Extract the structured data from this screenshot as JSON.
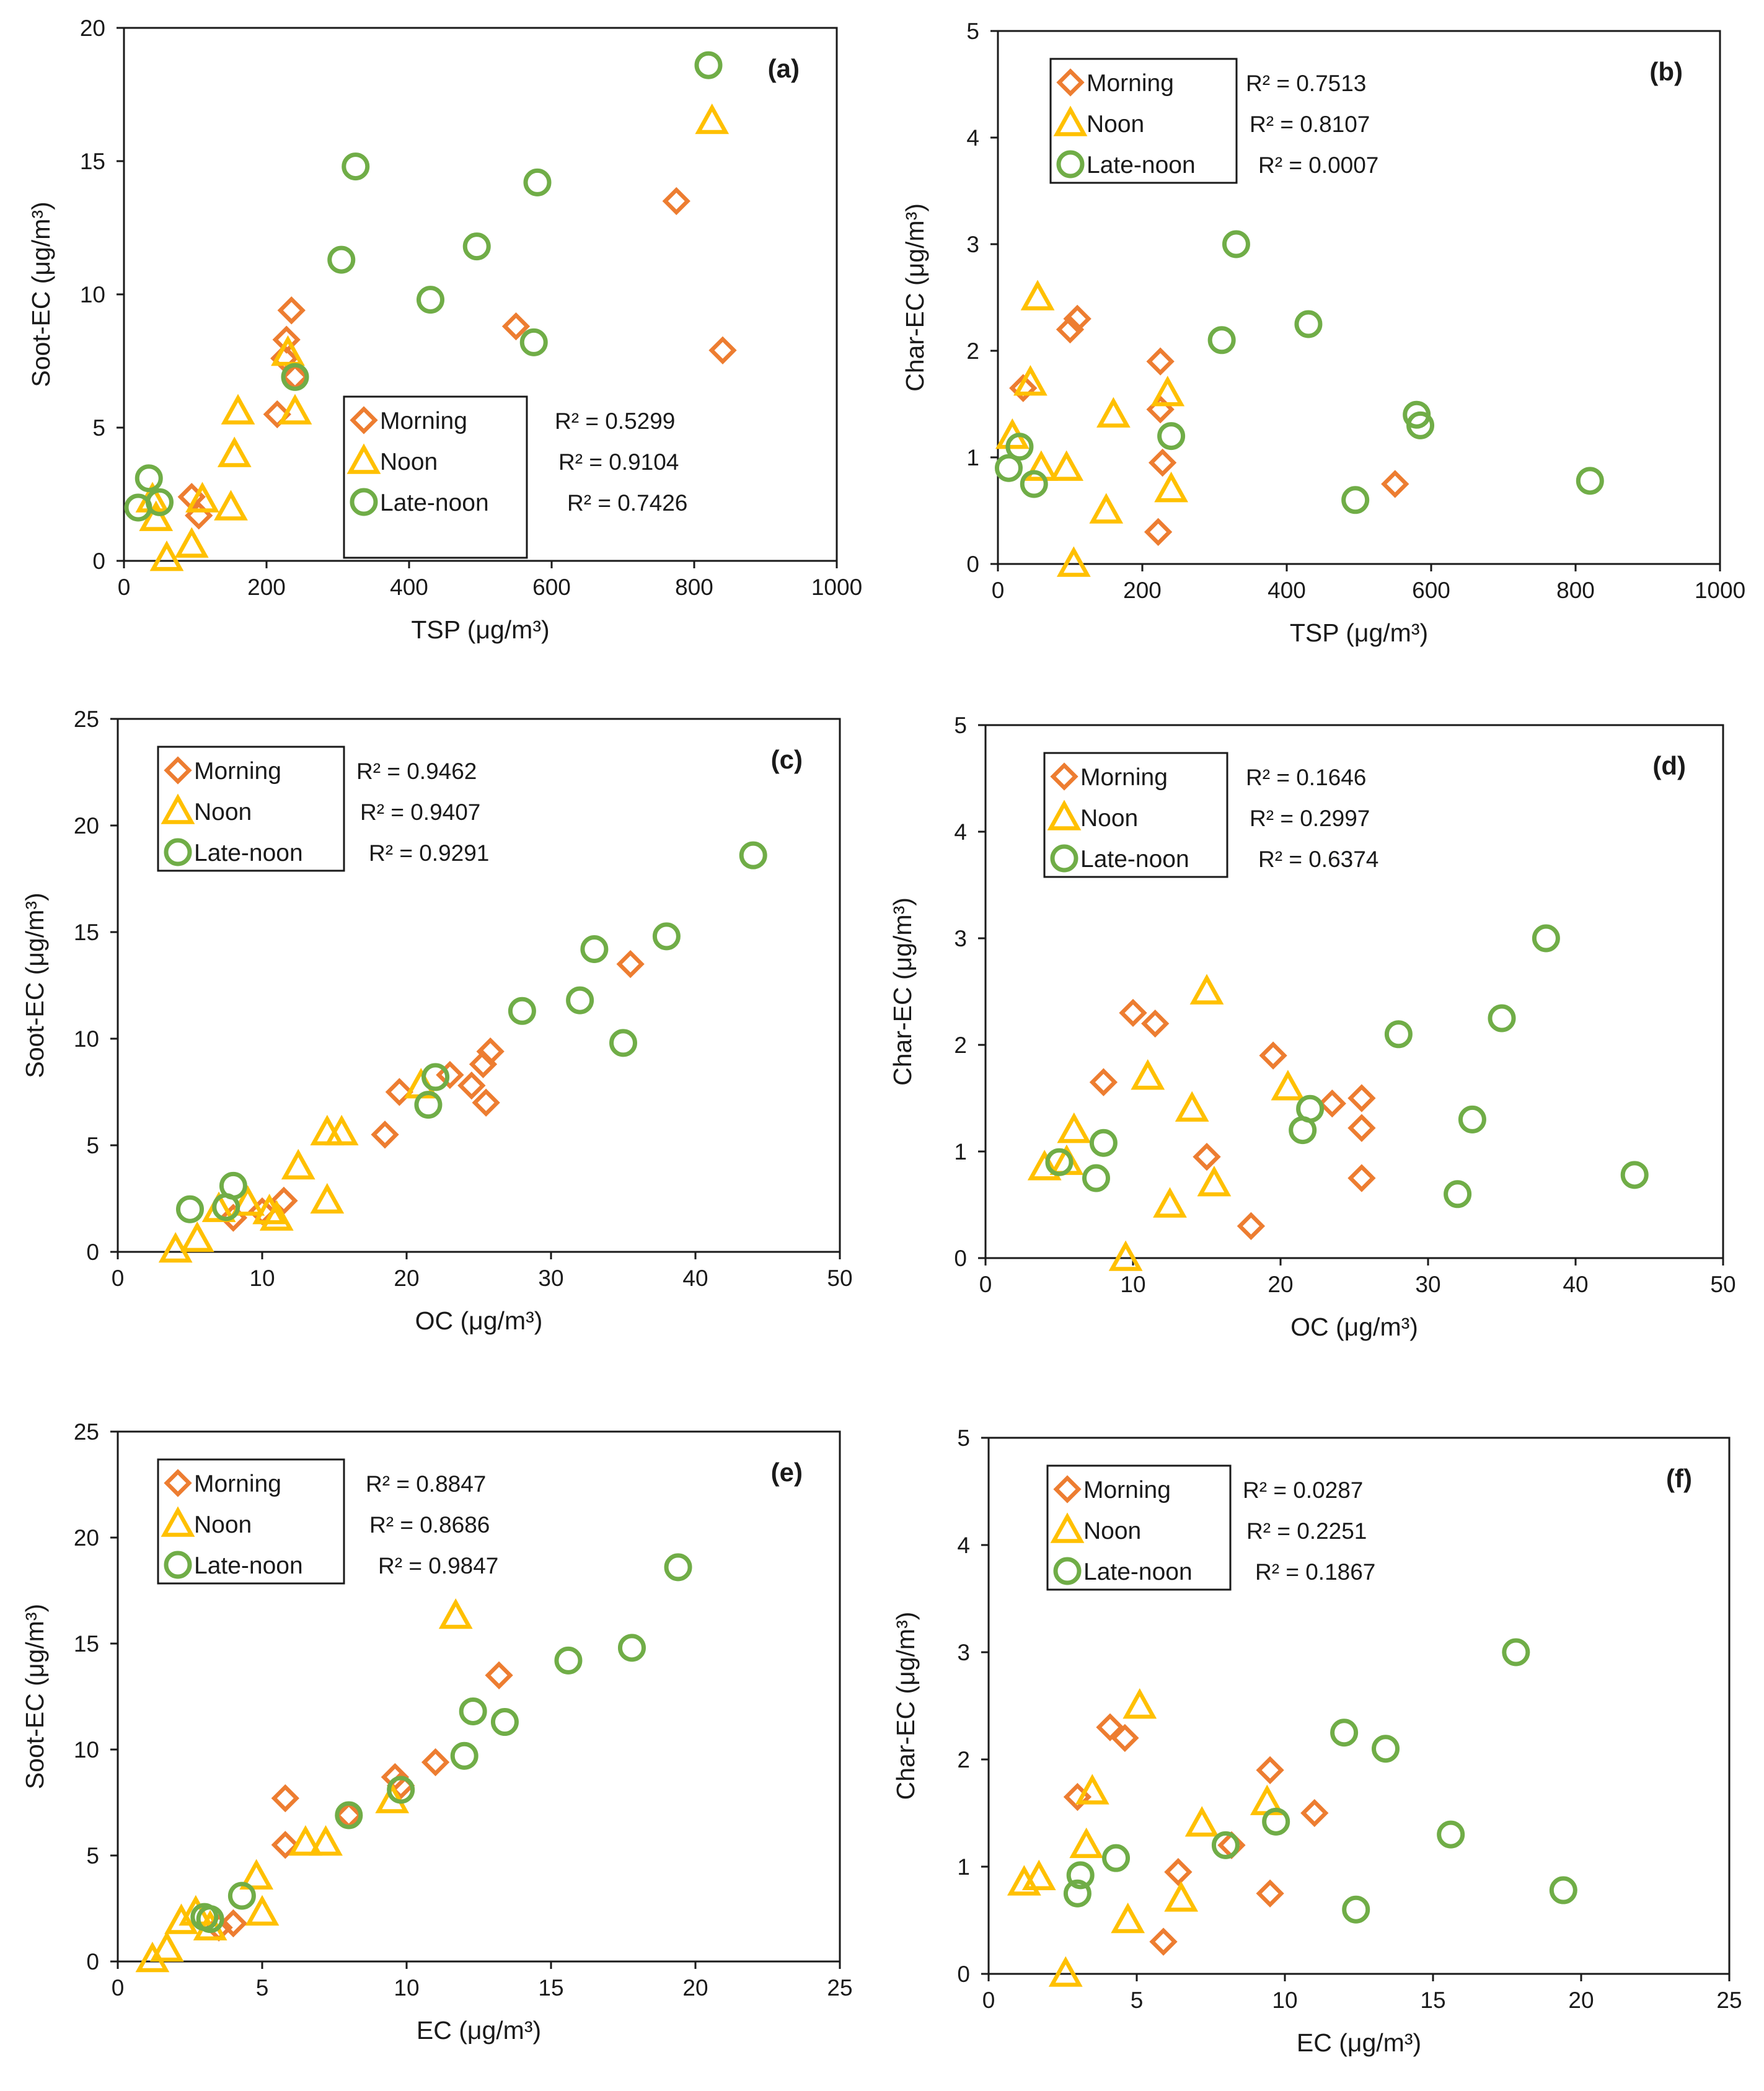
{
  "colors": {
    "morning": "#ED7D31",
    "noon": "#FFC000",
    "late_noon": "#70AD47",
    "axis": "#1a1a1a"
  },
  "legend": {
    "morning": "Morning",
    "noon": "Noon",
    "late_noon": "Late-noon"
  },
  "chart_data": [
    {
      "id": "a",
      "type": "scatter",
      "title": "(a)",
      "xlabel": "TSP (μg/m³)",
      "ylabel": "Soot-EC (μg/m³)",
      "xlim": [
        0,
        1000
      ],
      "ylim": [
        0,
        20
      ],
      "xticks": [
        0,
        200,
        400,
        600,
        800,
        1000
      ],
      "yticks": [
        0,
        5,
        10,
        15,
        20
      ],
      "xtick_labels": [
        "0",
        "200",
        "400",
        "600",
        "800",
        "1000"
      ],
      "ytick_labels": [
        "0",
        "5",
        "10",
        "15",
        "20"
      ],
      "legend_position": "bottom-right",
      "series": [
        {
          "name": "Morning",
          "marker": "diamond",
          "r2": "R² = 0.5299",
          "points": [
            [
              95,
              2.4
            ],
            [
              105,
              1.7
            ],
            [
              215,
              5.5
            ],
            [
              225,
              7.6
            ],
            [
              228,
              8.3
            ],
            [
              235,
              9.4
            ],
            [
              240,
              6.9
            ],
            [
              550,
              8.8
            ],
            [
              775,
              13.5
            ],
            [
              840,
              7.9
            ]
          ]
        },
        {
          "name": "Noon",
          "marker": "triangle",
          "r2": "R² = 0.9104",
          "points": [
            [
              40,
              2.3
            ],
            [
              45,
              1.6
            ],
            [
              60,
              0.1
            ],
            [
              95,
              0.6
            ],
            [
              110,
              2.3
            ],
            [
              150,
              2.0
            ],
            [
              155,
              4.0
            ],
            [
              160,
              5.6
            ],
            [
              230,
              7.8
            ],
            [
              240,
              5.6
            ],
            [
              825,
              16.5
            ]
          ]
        },
        {
          "name": "Late-noon",
          "marker": "circle",
          "r2": "R² = 0.7426",
          "points": [
            [
              20,
              2.0
            ],
            [
              35,
              3.1
            ],
            [
              50,
              2.2
            ],
            [
              240,
              6.9
            ],
            [
              305,
              11.3
            ],
            [
              325,
              14.8
            ],
            [
              430,
              9.8
            ],
            [
              495,
              11.8
            ],
            [
              575,
              8.2
            ],
            [
              580,
              14.2
            ],
            [
              820,
              18.6
            ]
          ]
        }
      ]
    },
    {
      "id": "b",
      "type": "scatter",
      "title": "(b)",
      "xlabel": "TSP (μg/m³)",
      "ylabel": "Char-EC (μg/m³)",
      "xlim": [
        0,
        1000
      ],
      "ylim": [
        0,
        5
      ],
      "xticks": [
        0,
        200,
        400,
        600,
        800,
        1000
      ],
      "yticks": [
        0,
        1,
        2,
        3,
        4,
        5
      ],
      "xtick_labels": [
        "0",
        "200",
        "400",
        "600",
        "800",
        "1000"
      ],
      "ytick_labels": [
        "0",
        "1",
        "2",
        "3",
        "4",
        "5"
      ],
      "legend_position": "top-left",
      "series": [
        {
          "name": "Morning",
          "marker": "diamond",
          "r2": "R² = 0.7513",
          "points": [
            [
              35,
              1.65
            ],
            [
              100,
              2.2
            ],
            [
              110,
              2.3
            ],
            [
              225,
              1.9
            ],
            [
              225,
              1.45
            ],
            [
              228,
              0.95
            ],
            [
              222,
              0.3
            ],
            [
              550,
              0.75
            ]
          ]
        },
        {
          "name": "Noon",
          "marker": "triangle",
          "r2": "R² = 0.8107",
          "points": [
            [
              20,
              1.2
            ],
            [
              45,
              1.7
            ],
            [
              55,
              2.5
            ],
            [
              60,
              0.9
            ],
            [
              95,
              0.9
            ],
            [
              105,
              0.0
            ],
            [
              150,
              0.5
            ],
            [
              160,
              1.4
            ],
            [
              235,
              1.6
            ],
            [
              240,
              0.7
            ]
          ]
        },
        {
          "name": "Late-noon",
          "marker": "circle",
          "r2": "R² = 0.0007",
          "points": [
            [
              15,
              0.9
            ],
            [
              30,
              1.1
            ],
            [
              50,
              0.75
            ],
            [
              240,
              1.2
            ],
            [
              310,
              2.1
            ],
            [
              330,
              3.0
            ],
            [
              430,
              2.25
            ],
            [
              495,
              0.6
            ],
            [
              580,
              1.4
            ],
            [
              585,
              1.3
            ],
            [
              820,
              0.78
            ]
          ]
        }
      ]
    },
    {
      "id": "c",
      "type": "scatter",
      "title": "(c)",
      "xlabel": "OC (μg/m³)",
      "ylabel": "Soot-EC (μg/m³)",
      "xlim": [
        0,
        50
      ],
      "ylim": [
        0,
        25
      ],
      "xticks": [
        0,
        10,
        20,
        30,
        40,
        50
      ],
      "yticks": [
        0,
        5,
        10,
        15,
        20,
        25
      ],
      "xtick_labels": [
        "0",
        "10",
        "20",
        "30",
        "40",
        "50"
      ],
      "ytick_labels": [
        "0",
        "5",
        "10",
        "15",
        "20",
        "25"
      ],
      "legend_position": "top-left",
      "series": [
        {
          "name": "Morning",
          "marker": "diamond",
          "r2": "R² = 0.9462",
          "points": [
            [
              8,
              1.6
            ],
            [
              10,
              1.9
            ],
            [
              11.5,
              2.4
            ],
            [
              18.5,
              5.5
            ],
            [
              19.5,
              7.5
            ],
            [
              23,
              8.3
            ],
            [
              24.5,
              7.8
            ],
            [
              25.3,
              8.8
            ],
            [
              25.8,
              9.4
            ],
            [
              25.5,
              7.0
            ],
            [
              35.5,
              13.5
            ]
          ]
        },
        {
          "name": "Noon",
          "marker": "triangle",
          "r2": "R² = 0.9407",
          "points": [
            [
              4,
              0.1
            ],
            [
              5.5,
              0.6
            ],
            [
              7,
              2.0
            ],
            [
              9,
              2.3
            ],
            [
              10.5,
              1.9
            ],
            [
              11,
              1.6
            ],
            [
              12.5,
              4.0
            ],
            [
              14.5,
              5.6
            ],
            [
              14.5,
              2.4
            ],
            [
              15.5,
              5.6
            ],
            [
              21,
              7.8
            ]
          ]
        },
        {
          "name": "Late-noon",
          "marker": "circle",
          "r2": "R² = 0.9291",
          "points": [
            [
              5,
              2.0
            ],
            [
              7.5,
              2.1
            ],
            [
              8,
              3.1
            ],
            [
              21.5,
              6.9
            ],
            [
              22,
              8.2
            ],
            [
              28,
              11.3
            ],
            [
              32,
              11.8
            ],
            [
              33,
              14.2
            ],
            [
              35,
              9.8
            ],
            [
              38,
              14.8
            ],
            [
              44,
              18.6
            ]
          ]
        }
      ]
    },
    {
      "id": "d",
      "type": "scatter",
      "title": "(d)",
      "xlabel": "OC (μg/m³)",
      "ylabel": "Char-EC (μg/m³)",
      "xlim": [
        0,
        50
      ],
      "ylim": [
        0,
        5
      ],
      "xticks": [
        0,
        10,
        20,
        30,
        40,
        50
      ],
      "yticks": [
        0,
        1,
        2,
        3,
        4,
        5
      ],
      "xtick_labels": [
        "0",
        "10",
        "20",
        "30",
        "40",
        "50"
      ],
      "ytick_labels": [
        "0",
        "1",
        "2",
        "3",
        "4",
        "5"
      ],
      "legend_position": "top-left",
      "series": [
        {
          "name": "Morning",
          "marker": "diamond",
          "r2": "R² = 0.1646",
          "points": [
            [
              8,
              1.65
            ],
            [
              10,
              2.3
            ],
            [
              11.5,
              2.2
            ],
            [
              15,
              0.95
            ],
            [
              18,
              0.3
            ],
            [
              19.5,
              1.9
            ],
            [
              23.5,
              1.45
            ],
            [
              25.5,
              1.5
            ],
            [
              25.5,
              1.22
            ],
            [
              25.5,
              0.75
            ]
          ]
        },
        {
          "name": "Noon",
          "marker": "triangle",
          "r2": "R² = 0.2997",
          "points": [
            [
              4,
              0.85
            ],
            [
              5.5,
              0.9
            ],
            [
              6,
              1.2
            ],
            [
              9.5,
              0.0
            ],
            [
              11,
              1.7
            ],
            [
              12.5,
              0.5
            ],
            [
              14,
              1.4
            ],
            [
              15,
              2.5
            ],
            [
              15.5,
              0.7
            ],
            [
              20.5,
              1.6
            ]
          ]
        },
        {
          "name": "Late-noon",
          "marker": "circle",
          "r2": "R² = 0.6374",
          "points": [
            [
              5,
              0.9
            ],
            [
              7.5,
              0.75
            ],
            [
              8,
              1.08
            ],
            [
              21.5,
              1.2
            ],
            [
              22,
              1.4
            ],
            [
              28,
              2.1
            ],
            [
              32,
              0.6
            ],
            [
              33,
              1.3
            ],
            [
              35,
              2.25
            ],
            [
              38,
              3.0
            ],
            [
              44,
              0.78
            ]
          ]
        }
      ]
    },
    {
      "id": "e",
      "type": "scatter",
      "title": "(e)",
      "xlabel": "EC (μg/m³)",
      "ylabel": "Soot-EC (μg/m³)",
      "xlim": [
        0,
        25
      ],
      "ylim": [
        0,
        25
      ],
      "xticks": [
        0,
        5,
        10,
        15,
        20,
        25
      ],
      "yticks": [
        0,
        5,
        10,
        15,
        20,
        25
      ],
      "xtick_labels": [
        "0",
        "5",
        "10",
        "15",
        "20",
        "25"
      ],
      "ytick_labels": [
        "0",
        "5",
        "10",
        "15",
        "20",
        "25"
      ],
      "legend_position": "top-left",
      "series": [
        {
          "name": "Morning",
          "marker": "diamond",
          "r2": "R² = 0.8847",
          "points": [
            [
              3.5,
              1.6
            ],
            [
              4,
              1.8
            ],
            [
              5.8,
              5.5
            ],
            [
              5.8,
              7.7
            ],
            [
              8,
              6.9
            ],
            [
              9.6,
              8.7
            ],
            [
              9.8,
              8.3
            ],
            [
              11,
              9.4
            ],
            [
              13.2,
              13.5
            ]
          ]
        },
        {
          "name": "Noon",
          "marker": "triangle",
          "r2": "R² = 0.8686",
          "points": [
            [
              1.2,
              0.1
            ],
            [
              1.7,
              0.6
            ],
            [
              2.2,
              1.9
            ],
            [
              2.7,
              2.3
            ],
            [
              3.2,
              1.6
            ],
            [
              4.8,
              4.0
            ],
            [
              5,
              2.3
            ],
            [
              6.5,
              5.6
            ],
            [
              7.2,
              5.6
            ],
            [
              9.5,
              7.6
            ],
            [
              11.7,
              16.3
            ]
          ]
        },
        {
          "name": "Late-noon",
          "marker": "circle",
          "r2": "R² = 0.9847",
          "points": [
            [
              3,
              2.1
            ],
            [
              3.2,
              2.0
            ],
            [
              4.3,
              3.1
            ],
            [
              8,
              6.9
            ],
            [
              9.8,
              8.1
            ],
            [
              12,
              9.7
            ],
            [
              12.3,
              11.8
            ],
            [
              13.4,
              11.3
            ],
            [
              15.6,
              14.2
            ],
            [
              17.8,
              14.8
            ],
            [
              19.4,
              18.6
            ]
          ]
        }
      ]
    },
    {
      "id": "f",
      "type": "scatter",
      "title": "(f)",
      "xlabel": "EC (μg/m³)",
      "ylabel": "Char-EC (μg/m³)",
      "xlim": [
        0,
        25
      ],
      "ylim": [
        0,
        5
      ],
      "xticks": [
        0,
        5,
        10,
        15,
        20,
        25
      ],
      "yticks": [
        0,
        1,
        2,
        3,
        4,
        5
      ],
      "xtick_labels": [
        "0",
        "5",
        "10",
        "15",
        "20",
        "25"
      ],
      "ytick_labels": [
        "0",
        "1",
        "2",
        "3",
        "4",
        "5"
      ],
      "legend_position": "top-left",
      "series": [
        {
          "name": "Morning",
          "marker": "diamond",
          "r2": "R² = 0.0287",
          "points": [
            [
              3,
              1.65
            ],
            [
              4.1,
              2.3
            ],
            [
              4.6,
              2.2
            ],
            [
              5.9,
              0.3
            ],
            [
              6.4,
              0.95
            ],
            [
              8.2,
              1.2
            ],
            [
              9.5,
              1.9
            ],
            [
              9.5,
              0.75
            ],
            [
              11,
              1.5
            ]
          ]
        },
        {
          "name": "Noon",
          "marker": "triangle",
          "r2": "R² = 0.2251",
          "points": [
            [
              1.2,
              0.85
            ],
            [
              1.7,
              0.9
            ],
            [
              2.6,
              0.0
            ],
            [
              3.3,
              1.2
            ],
            [
              3.5,
              1.7
            ],
            [
              4.7,
              0.5
            ],
            [
              5.1,
              2.5
            ],
            [
              6.5,
              0.7
            ],
            [
              7.2,
              1.4
            ],
            [
              9.4,
              1.6
            ]
          ]
        },
        {
          "name": "Late-noon",
          "marker": "circle",
          "r2": "R² = 0.1867",
          "points": [
            [
              3,
              0.75
            ],
            [
              3.1,
              0.92
            ],
            [
              4.3,
              1.08
            ],
            [
              8,
              1.2
            ],
            [
              9.7,
              1.42
            ],
            [
              12,
              2.25
            ],
            [
              12.4,
              0.6
            ],
            [
              13.4,
              2.1
            ],
            [
              15.6,
              1.3
            ],
            [
              17.8,
              3.0
            ],
            [
              19.4,
              0.78
            ]
          ]
        }
      ]
    }
  ]
}
